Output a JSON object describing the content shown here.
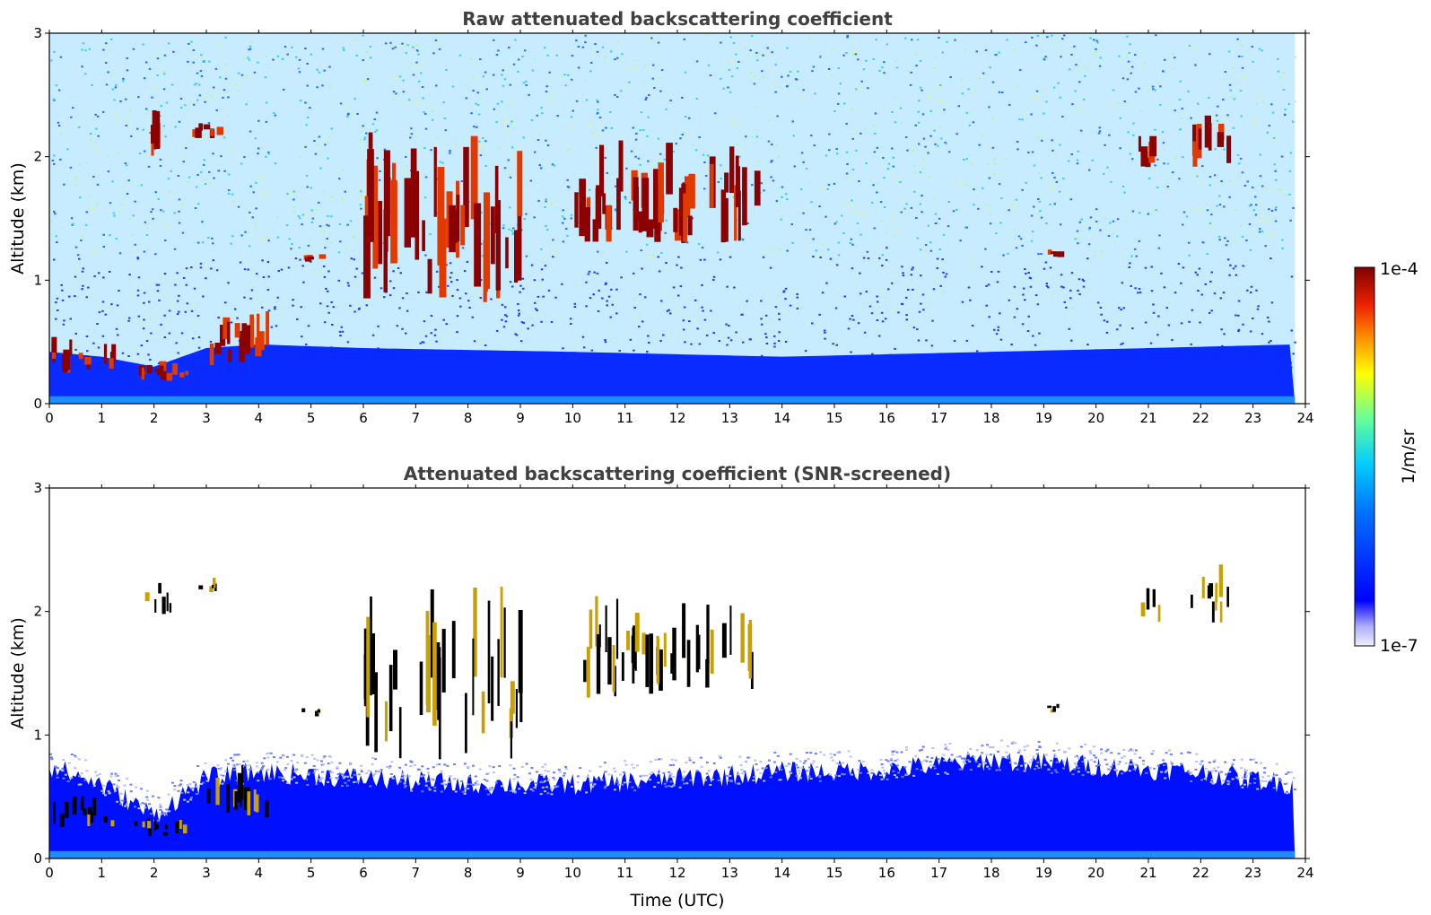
{
  "chart_data": [
    {
      "type": "heatmap",
      "title": "Raw attenuated backscattering coefficient",
      "xlabel": "",
      "ylabel": "Altitude (km)",
      "xlim": [
        0,
        24
      ],
      "ylim": [
        0,
        3
      ],
      "x_ticks": [
        "0",
        "1",
        "2",
        "3",
        "4",
        "5",
        "6",
        "7",
        "8",
        "9",
        "10",
        "11",
        "12",
        "13",
        "14",
        "15",
        "16",
        "17",
        "18",
        "19",
        "20",
        "21",
        "22",
        "23",
        "24"
      ],
      "y_ticks": [
        "0",
        "1",
        "2",
        "3"
      ],
      "data_end_time": 23.8,
      "boundary_layer_top_km": [
        [
          0.0,
          0.42
        ],
        [
          1.0,
          0.38
        ],
        [
          2.0,
          0.3
        ],
        [
          3.0,
          0.45
        ],
        [
          4.0,
          0.48
        ],
        [
          6.0,
          0.45
        ],
        [
          10.0,
          0.42
        ],
        [
          14.0,
          0.38
        ],
        [
          18.0,
          0.42
        ],
        [
          21.0,
          0.45
        ],
        [
          23.8,
          0.48
        ]
      ],
      "cloud_features": [
        {
          "t_start": 0.0,
          "t_end": 1.2,
          "alt_bottom": 0.25,
          "alt_top": 0.5
        },
        {
          "t_start": 1.6,
          "t_end": 2.6,
          "alt_bottom": 0.18,
          "alt_top": 0.32
        },
        {
          "t_start": 3.0,
          "t_end": 4.2,
          "alt_bottom": 0.3,
          "alt_top": 0.7
        },
        {
          "t_start": 1.8,
          "t_end": 2.3,
          "alt_bottom": 1.95,
          "alt_top": 2.3
        },
        {
          "t_start": 2.7,
          "t_end": 3.2,
          "alt_bottom": 2.15,
          "alt_top": 2.28
        },
        {
          "t_start": 6.0,
          "t_end": 9.0,
          "alt_bottom": 0.8,
          "alt_top": 2.0
        },
        {
          "t_start": 10.0,
          "t_end": 13.5,
          "alt_bottom": 1.3,
          "alt_top": 2.0
        },
        {
          "t_start": 20.8,
          "t_end": 21.2,
          "alt_bottom": 1.9,
          "alt_top": 2.15
        },
        {
          "t_start": 21.7,
          "t_end": 22.5,
          "alt_bottom": 1.9,
          "alt_top": 2.3
        },
        {
          "t_start": 19.0,
          "t_end": 19.3,
          "alt_bottom": 1.18,
          "alt_top": 1.25
        },
        {
          "t_start": 4.8,
          "t_end": 5.2,
          "alt_bottom": 1.15,
          "alt_top": 1.22
        }
      ]
    },
    {
      "type": "heatmap",
      "title": "Attenuated backscattering coefficient (SNR-screened)",
      "xlabel": "Time (UTC)",
      "ylabel": "Altitude (km)",
      "xlim": [
        0,
        24
      ],
      "ylim": [
        0,
        3
      ],
      "x_ticks": [
        "0",
        "1",
        "2",
        "3",
        "4",
        "5",
        "6",
        "7",
        "8",
        "9",
        "10",
        "11",
        "12",
        "13",
        "14",
        "15",
        "16",
        "17",
        "18",
        "19",
        "20",
        "21",
        "22",
        "23",
        "24"
      ],
      "y_ticks": [
        "0",
        "1",
        "2",
        "3"
      ],
      "data_end_time": 23.8,
      "boundary_layer_top_km": [
        [
          0.0,
          0.75
        ],
        [
          1.0,
          0.6
        ],
        [
          2.0,
          0.35
        ],
        [
          3.0,
          0.65
        ],
        [
          4.0,
          0.7
        ],
        [
          6.0,
          0.65
        ],
        [
          8.0,
          0.6
        ],
        [
          10.0,
          0.6
        ],
        [
          12.0,
          0.65
        ],
        [
          14.0,
          0.7
        ],
        [
          16.0,
          0.72
        ],
        [
          18.0,
          0.8
        ],
        [
          20.0,
          0.75
        ],
        [
          22.0,
          0.7
        ],
        [
          23.8,
          0.6
        ]
      ]
    }
  ],
  "colorbar": {
    "label": "1/m/sr",
    "max_label": "1e-4",
    "min_label": "1e-7",
    "scale": "log",
    "range": [
      1e-07,
      0.0001
    ],
    "colormap": [
      "#eeeeff",
      "#0000ff",
      "#00ccff",
      "#66ff99",
      "#ffff00",
      "#ff6600",
      "#cc0000",
      "#800000"
    ]
  }
}
